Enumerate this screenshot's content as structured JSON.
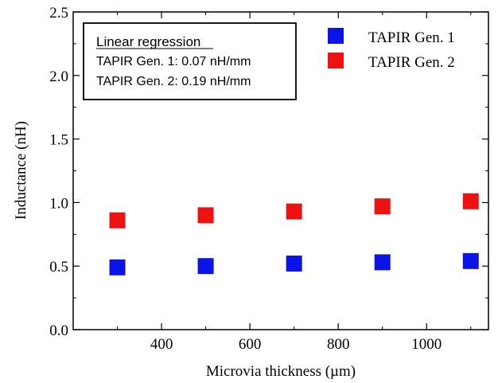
{
  "chart_data": {
    "type": "scatter",
    "xlabel": "Microvia thickness (µm)",
    "ylabel": "Inductance (nH)",
    "xlim": [
      200,
      1140
    ],
    "ylim": [
      0.0,
      2.5
    ],
    "xticks": [
      400,
      600,
      800,
      1000
    ],
    "yticks": [
      0.0,
      0.5,
      1.0,
      1.5,
      2.0,
      2.5
    ],
    "ytick_labels": [
      "0.0",
      "0.5",
      "1.0",
      "1.5",
      "2.0",
      "2.5"
    ],
    "xtick_labels": [
      "400",
      "600",
      "800",
      "1000"
    ],
    "grid": false,
    "legend_position": "top-right",
    "series": [
      {
        "name": "TAPIR Gen. 1",
        "color": "#0a14e6",
        "marker": "square",
        "x": [
          300,
          500,
          700,
          900,
          1100
        ],
        "y": [
          0.49,
          0.5,
          0.52,
          0.53,
          0.54
        ]
      },
      {
        "name": "TAPIR Gen. 2",
        "color": "#ee1111",
        "marker": "square",
        "x": [
          300,
          500,
          700,
          900,
          1100
        ],
        "y": [
          0.86,
          0.9,
          0.93,
          0.97,
          1.01
        ]
      }
    ],
    "annotation": {
      "title": "Linear regression",
      "lines": [
        "TAPIR Gen. 1: 0.07 nH/mm",
        "TAPIR Gen. 2: 0.19 nH/mm"
      ]
    }
  }
}
